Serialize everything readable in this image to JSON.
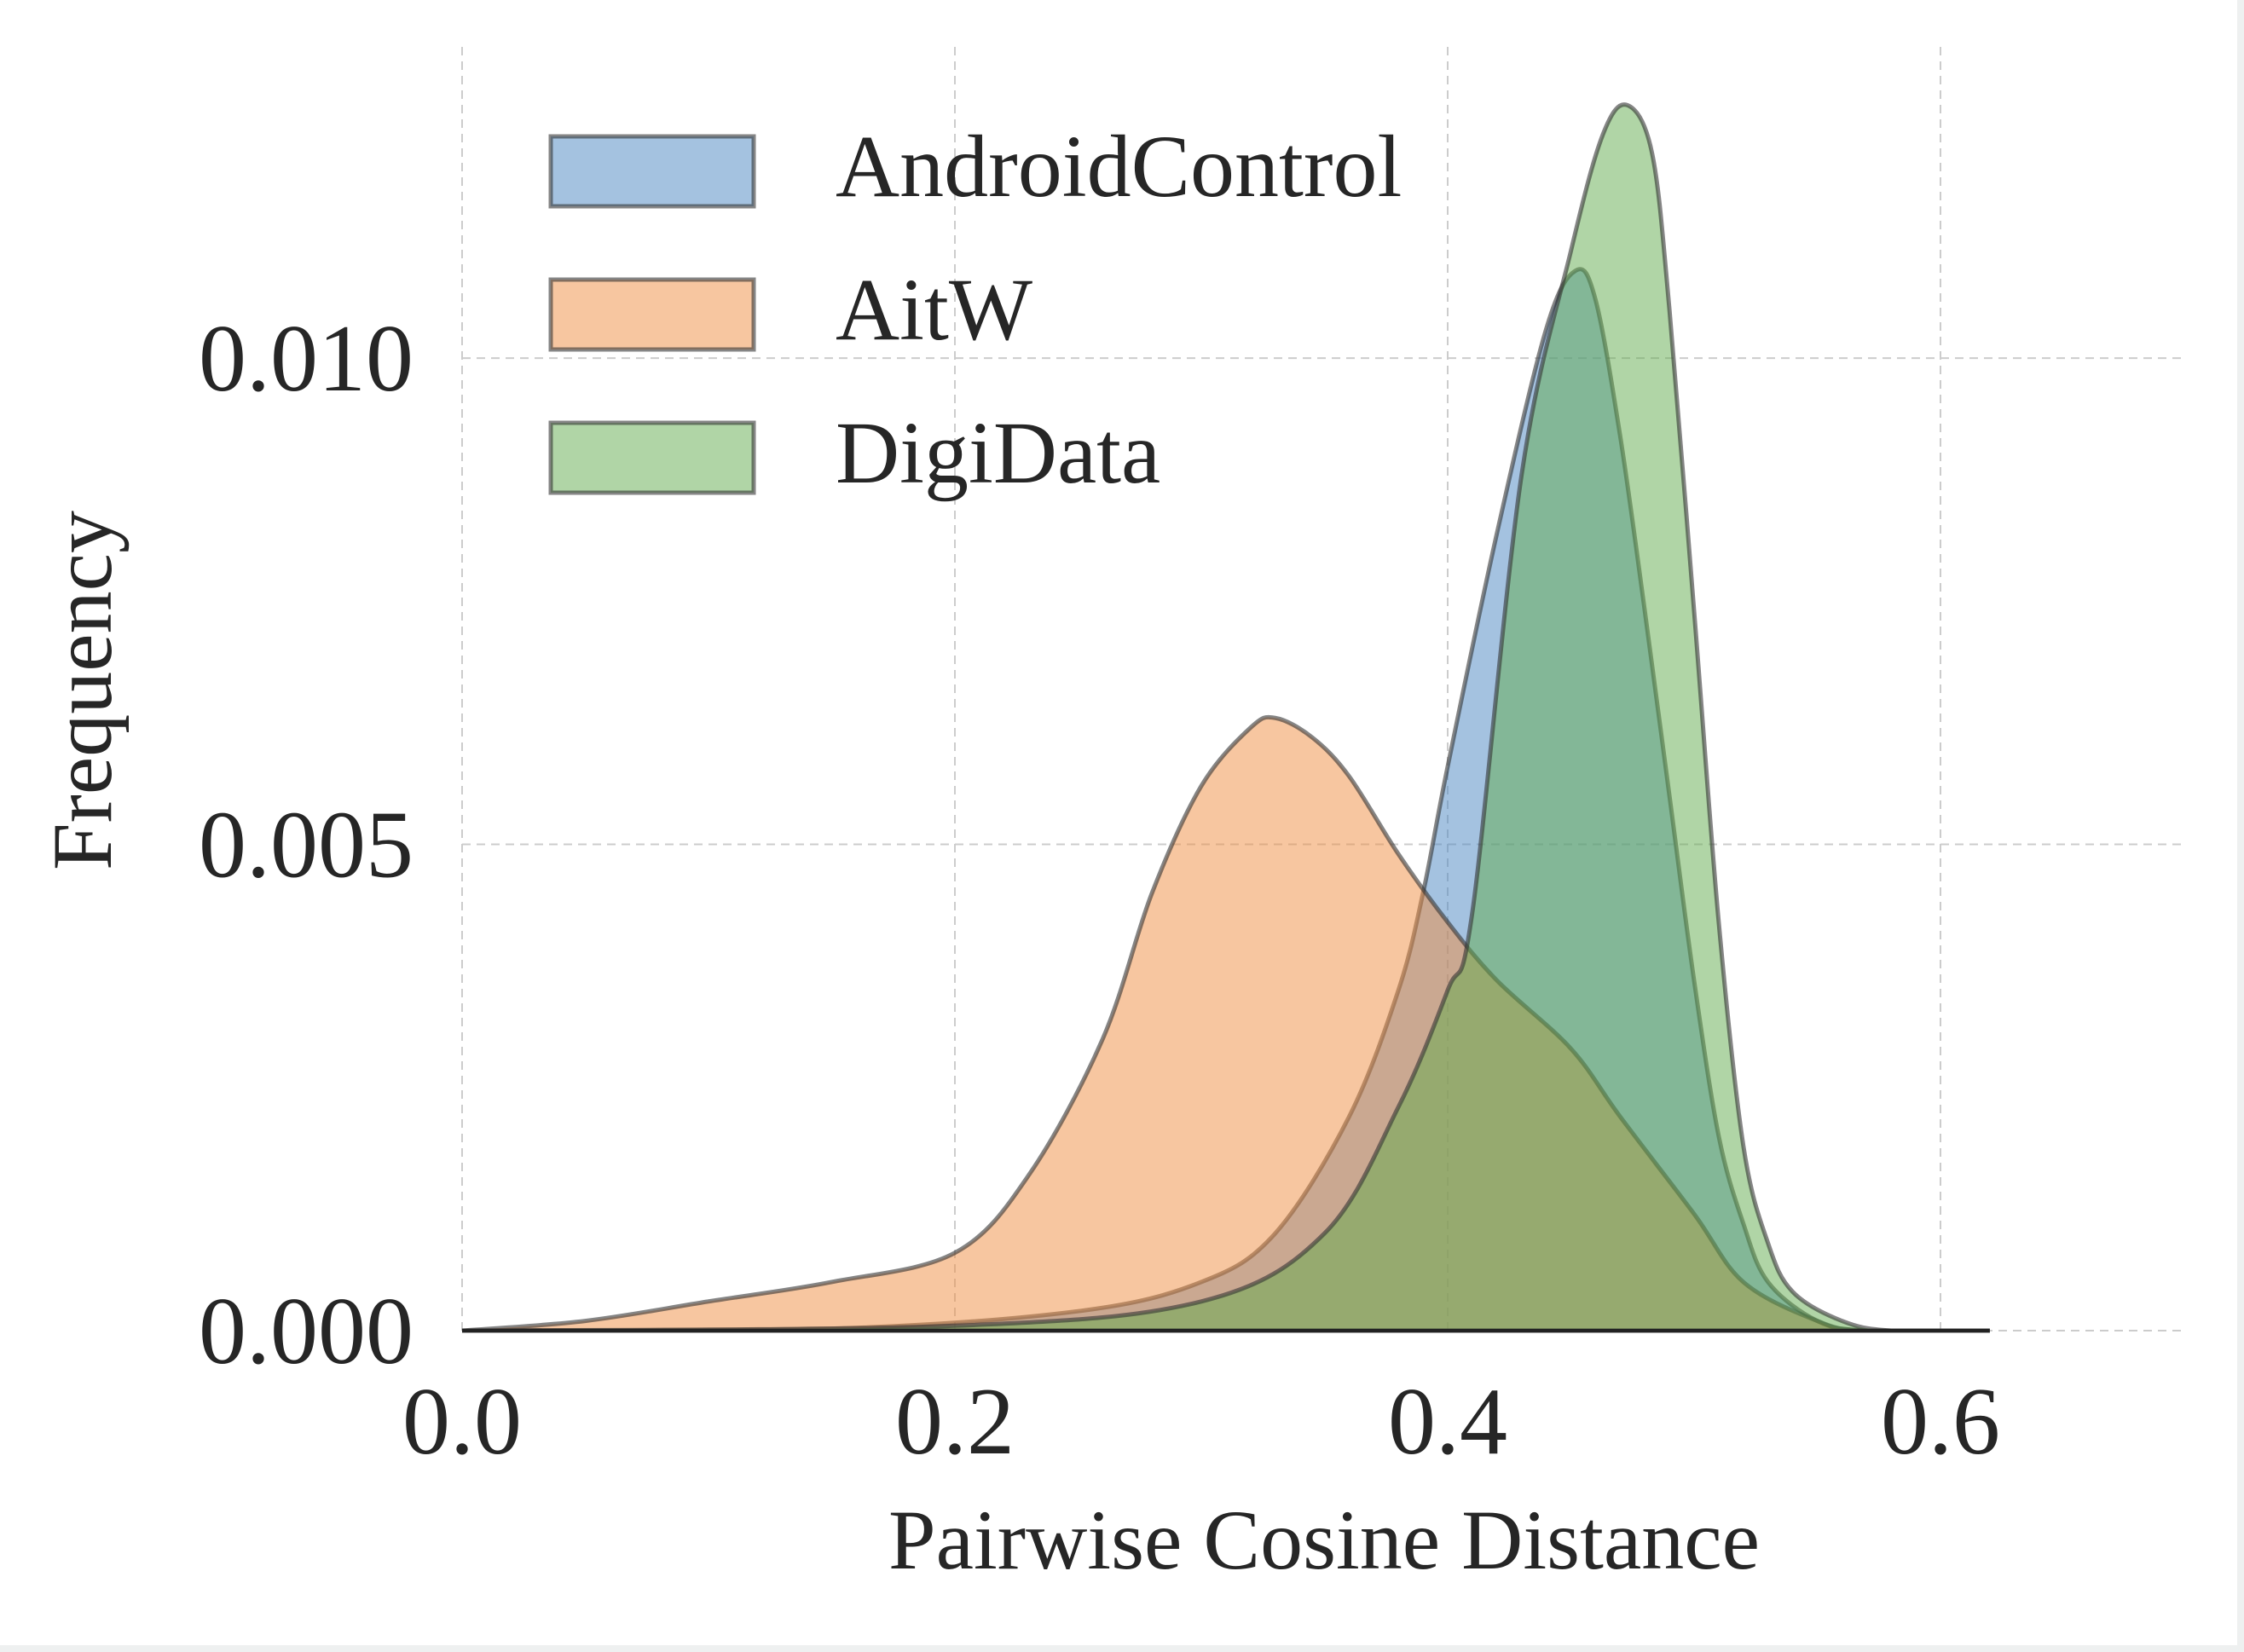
{
  "chart_data": {
    "type": "area",
    "title": "",
    "xlabel": "Pairwise Cosine Distance",
    "ylabel": "Frequency",
    "xlim": [
      0.0,
      0.7
    ],
    "ylim": [
      0.0,
      0.0132
    ],
    "xticks": [
      "0.0",
      "0.2",
      "0.4",
      "0.6"
    ],
    "xtick_values": [
      0.0,
      0.2,
      0.4,
      0.6
    ],
    "yticks": [
      "0.000",
      "0.005",
      "0.010"
    ],
    "ytick_values": [
      0.0,
      0.005,
      0.01
    ],
    "grid": true,
    "legend_position": "top-left",
    "series": [
      {
        "name": "AndroidControl",
        "color": "#4a85c2",
        "x": [
          0.0,
          0.15,
          0.25,
          0.3,
          0.33,
          0.36,
          0.38,
          0.39,
          0.4,
          0.42,
          0.44,
          0.452,
          0.46,
          0.47,
          0.48,
          0.49,
          0.5,
          0.51,
          0.52,
          0.53,
          0.55,
          0.57,
          0.62
        ],
        "y": [
          0,
          2e-05,
          0.0002,
          0.0005,
          0.001,
          0.0022,
          0.0035,
          0.0045,
          0.0058,
          0.0082,
          0.0103,
          0.0109,
          0.0106,
          0.0092,
          0.0074,
          0.0055,
          0.0036,
          0.002,
          0.0011,
          0.0005,
          0.0001,
          0,
          0
        ]
      },
      {
        "name": "AitW",
        "color": "#f08d41",
        "x": [
          0.0,
          0.05,
          0.1,
          0.15,
          0.2,
          0.23,
          0.26,
          0.28,
          0.3,
          0.32,
          0.33,
          0.345,
          0.36,
          0.38,
          0.4,
          0.42,
          0.45,
          0.47,
          0.5,
          0.52,
          0.55,
          0.57,
          0.62
        ],
        "y": [
          0,
          0.0001,
          0.0003,
          0.0005,
          0.0008,
          0.0016,
          0.003,
          0.0045,
          0.0056,
          0.0062,
          0.0063,
          0.0061,
          0.0057,
          0.0049,
          0.0042,
          0.0036,
          0.0029,
          0.0022,
          0.0012,
          0.0005,
          0.0001,
          0,
          0
        ]
      },
      {
        "name": "DigiData",
        "color": "#62ab4e",
        "x": [
          0.0,
          0.2,
          0.3,
          0.35,
          0.38,
          0.4,
          0.41,
          0.43,
          0.45,
          0.463,
          0.473,
          0.483,
          0.49,
          0.5,
          0.51,
          0.52,
          0.53,
          0.54,
          0.56,
          0.58,
          0.62
        ],
        "y": [
          0,
          5e-05,
          0.0003,
          0.001,
          0.0023,
          0.0035,
          0.0043,
          0.0088,
          0.0111,
          0.0123,
          0.0126,
          0.0121,
          0.0105,
          0.0074,
          0.0042,
          0.0019,
          0.0009,
          0.0004,
          0.0001,
          0,
          0
        ]
      }
    ]
  }
}
